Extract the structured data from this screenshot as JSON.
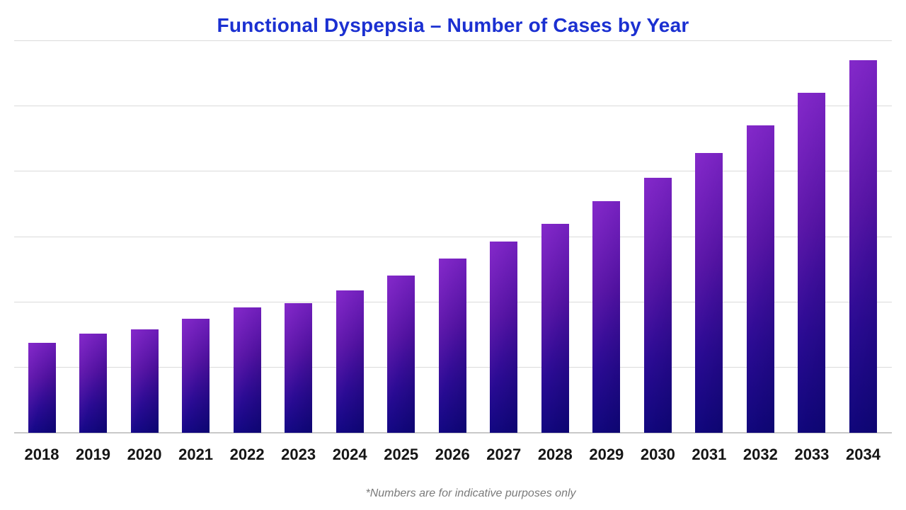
{
  "title": "Functional Dyspepsia – Number of Cases by Year",
  "footnote": "*Numbers are for indicative purposes only",
  "colors": {
    "title": "#1b30d1",
    "bar_gradient_top": "#6a1cb6",
    "bar_gradient_bottom": "#140887",
    "bar_highlight": "#af3eeb",
    "gridline": "#dadada",
    "baseline": "#c9c9c9",
    "tick_label": "#151515",
    "footnote": "#7a7a7a",
    "background": "#ffffff"
  },
  "chart_data": {
    "type": "bar",
    "title": "Functional Dyspepsia – Number of Cases by Year",
    "categories": [
      "2018",
      "2019",
      "2020",
      "2021",
      "2022",
      "2023",
      "2024",
      "2025",
      "2026",
      "2027",
      "2028",
      "2029",
      "2030",
      "2031",
      "2032",
      "2033",
      "2034"
    ],
    "values": [
      69,
      76,
      79,
      87,
      96,
      99,
      109,
      120,
      133,
      146,
      160,
      177,
      195,
      214,
      235,
      260,
      285
    ],
    "value_units": "indicative units (no y-axis labels shown)",
    "xlabel": "",
    "ylabel": "",
    "ylim": [
      0,
      300
    ],
    "gridline_step": 50,
    "grid": true,
    "legend_position": "none",
    "y_axis_labels_visible": false,
    "annotation": "*Numbers are for indicative purposes only"
  }
}
